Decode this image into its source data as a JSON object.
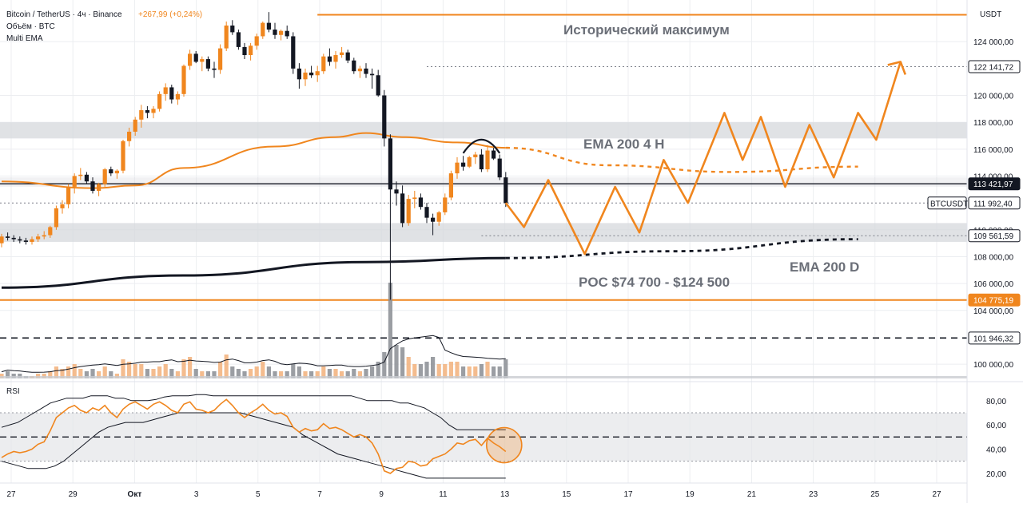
{
  "header": {
    "pair": "Bitcoin / TetherUS · 4ч · Binance",
    "change": "+267,99 (+0,24%)",
    "volume_label": "Объём · BTC",
    "ema_label": "Multi EMA",
    "rsi_label": "RSI"
  },
  "price_axis": {
    "currency": "USDT",
    "ticks": [
      "124 000,00",
      "120 000,00",
      "118 000,00",
      "116 000,00",
      "114 000,00",
      "110 000,00",
      "108 000,00",
      "106 000,00",
      "104 000,00",
      "100 000,00"
    ],
    "tick_values": [
      124000,
      120000,
      118000,
      116000,
      114000,
      110000,
      108000,
      106000,
      104000,
      100000
    ]
  },
  "rsi_axis": {
    "ticks": [
      "80,00",
      "60,00",
      "40,00",
      "20,00"
    ],
    "tick_values": [
      80,
      60,
      40,
      20
    ]
  },
  "price_labels": [
    {
      "text": "122 141,72",
      "value": 122141.72,
      "style": "white"
    },
    {
      "text": "113 421,97",
      "value": 113421.97,
      "style": "dark"
    },
    {
      "text": "111 992,40",
      "value": 111992.4,
      "style": "white"
    },
    {
      "text": "109 561,59",
      "value": 109561.59,
      "style": "white"
    },
    {
      "text": "104 775,19",
      "value": 104775.19,
      "style": "orange"
    },
    {
      "text": "101 946,32",
      "value": 101946.32,
      "style": "white"
    }
  ],
  "symbol_tag": "BTCUSDT",
  "annotations": {
    "ath": "Исторический максимум",
    "ema4h": "EMA 200 4 H",
    "emad": "EMA 200 D",
    "poc": "POC $74 700 - $124 500"
  },
  "time_axis": {
    "labels": [
      "27",
      "29",
      "Окт",
      "3",
      "5",
      "7",
      "9",
      "11",
      "13",
      "15",
      "17",
      "19",
      "21",
      "23",
      "25",
      "27"
    ]
  },
  "colors": {
    "orange": "#f0861e",
    "dark": "#131722",
    "zone": "#d6d8dc",
    "grid": "#eceef1"
  },
  "chart_data": {
    "type": "candlestick",
    "title": "Bitcoin / TetherUS · 4ч · Binance",
    "ylim": [
      98700,
      127100
    ],
    "candles": [
      [
        0,
        109000,
        109700,
        108700,
        109500
      ],
      [
        1,
        109500,
        109800,
        109200,
        109400
      ],
      [
        2,
        109400,
        109600,
        109100,
        109300
      ],
      [
        3,
        109300,
        109500,
        109000,
        109200
      ],
      [
        4,
        109200,
        109400,
        108900,
        109100
      ],
      [
        5,
        109100,
        109500,
        108900,
        109300
      ],
      [
        6,
        109300,
        109700,
        109100,
        109500
      ],
      [
        7,
        109500,
        109900,
        109300,
        109600
      ],
      [
        8,
        109600,
        110300,
        109400,
        110200
      ],
      [
        9,
        110200,
        111800,
        110000,
        111600
      ],
      [
        10,
        111600,
        112200,
        111200,
        111900
      ],
      [
        11,
        111900,
        113400,
        111600,
        113200
      ],
      [
        12,
        113200,
        114200,
        112700,
        114000
      ],
      [
        13,
        114000,
        114600,
        113700,
        114100
      ],
      [
        14,
        114100,
        114300,
        113400,
        113600
      ],
      [
        15,
        113600,
        113900,
        112700,
        112900
      ],
      [
        16,
        112900,
        113500,
        112500,
        113400
      ],
      [
        17,
        113400,
        114600,
        113200,
        114500
      ],
      [
        18,
        114500,
        114700,
        114000,
        114200
      ],
      [
        19,
        114200,
        114500,
        113800,
        114400
      ],
      [
        20,
        114400,
        116700,
        114200,
        116600
      ],
      [
        21,
        116600,
        117600,
        116200,
        117300
      ],
      [
        22,
        117300,
        118400,
        117000,
        118200
      ],
      [
        23,
        118200,
        119300,
        117600,
        118900
      ],
      [
        24,
        118900,
        119200,
        118300,
        118700
      ],
      [
        25,
        118700,
        119200,
        118300,
        119000
      ],
      [
        26,
        119000,
        120300,
        118800,
        120100
      ],
      [
        27,
        120100,
        120900,
        119600,
        120600
      ],
      [
        28,
        120600,
        120800,
        119400,
        119700
      ],
      [
        29,
        119700,
        120300,
        119300,
        120100
      ],
      [
        30,
        120100,
        122300,
        119900,
        122200
      ],
      [
        31,
        122200,
        123400,
        121900,
        123100
      ],
      [
        32,
        123100,
        123300,
        122400,
        122500
      ],
      [
        33,
        122500,
        122900,
        121800,
        122700
      ],
      [
        34,
        122700,
        122900,
        121800,
        122000
      ],
      [
        35,
        122000,
        122500,
        121300,
        121900
      ],
      [
        36,
        121900,
        123800,
        121600,
        123500
      ],
      [
        37,
        123500,
        125500,
        123300,
        125200
      ],
      [
        38,
        125200,
        125600,
        124500,
        124700
      ],
      [
        39,
        124700,
        124900,
        123400,
        123600
      ],
      [
        40,
        123600,
        123900,
        122700,
        123000
      ],
      [
        41,
        123000,
        123900,
        122600,
        123700
      ],
      [
        42,
        123700,
        124600,
        123400,
        124400
      ],
      [
        43,
        124400,
        125500,
        124200,
        125400
      ],
      [
        44,
        125400,
        126200,
        124700,
        124900
      ],
      [
        45,
        124900,
        125400,
        124200,
        124500
      ],
      [
        46,
        124500,
        124900,
        124100,
        124800
      ],
      [
        47,
        124800,
        125200,
        124200,
        124400
      ],
      [
        48,
        124400,
        124700,
        121600,
        122000
      ],
      [
        49,
        122000,
        122400,
        120500,
        121200
      ],
      [
        50,
        121200,
        122000,
        120700,
        121700
      ],
      [
        51,
        121700,
        122200,
        121300,
        121500
      ],
      [
        52,
        121500,
        122200,
        121000,
        121800
      ],
      [
        53,
        121800,
        123100,
        121600,
        122900
      ],
      [
        54,
        122900,
        123500,
        122200,
        122500
      ],
      [
        55,
        122500,
        123300,
        122000,
        123000
      ],
      [
        56,
        123000,
        123600,
        122800,
        123200
      ],
      [
        57,
        123200,
        123400,
        122400,
        122600
      ],
      [
        58,
        122600,
        122800,
        121600,
        121800
      ],
      [
        59,
        121800,
        122200,
        121300,
        122000
      ],
      [
        60,
        122000,
        122400,
        121300,
        121600
      ],
      [
        61,
        121600,
        122000,
        120500,
        121500
      ],
      [
        62,
        121500,
        121900,
        119900,
        120000
      ],
      [
        63,
        120000,
        120400,
        116200,
        116800
      ],
      [
        64,
        116800,
        117100,
        104800,
        113000
      ],
      [
        65,
        113000,
        113600,
        111800,
        112700
      ],
      [
        66,
        112700,
        113300,
        110200,
        110500
      ],
      [
        67,
        110500,
        112600,
        110300,
        112300
      ],
      [
        68,
        112300,
        112900,
        111600,
        112400
      ],
      [
        69,
        112400,
        112700,
        111500,
        111700
      ],
      [
        70,
        111700,
        112000,
        110500,
        110900
      ],
      [
        71,
        110900,
        111200,
        109600,
        110600
      ],
      [
        72,
        110600,
        111400,
        110300,
        111300
      ],
      [
        73,
        111300,
        112700,
        111100,
        112400
      ],
      [
        74,
        112400,
        114400,
        112200,
        114200
      ],
      [
        75,
        114200,
        115400,
        113800,
        115000
      ],
      [
        76,
        115000,
        115500,
        114400,
        114700
      ],
      [
        77,
        114700,
        115500,
        114600,
        115400
      ],
      [
        78,
        115400,
        115800,
        114900,
        115600
      ],
      [
        79,
        115600,
        116000,
        114300,
        114500
      ],
      [
        80,
        114500,
        116300,
        114300,
        115900
      ],
      [
        81,
        115900,
        116100,
        115200,
        115300
      ],
      [
        82,
        115300,
        115600,
        113700,
        113900
      ],
      [
        83,
        113900,
        114300,
        111700,
        112000
      ]
    ],
    "volume": [
      2,
      3,
      2,
      2,
      1,
      1,
      2,
      2,
      3,
      5,
      4,
      5,
      6,
      4,
      3,
      4,
      3,
      5,
      3,
      2,
      8,
      7,
      6,
      6,
      4,
      4,
      5,
      6,
      4,
      3,
      8,
      9,
      4,
      3,
      3,
      3,
      7,
      10,
      5,
      4,
      3,
      4,
      5,
      7,
      5,
      3,
      3,
      3,
      6,
      5,
      3,
      3,
      3,
      5,
      4,
      4,
      3,
      3,
      4,
      3,
      4,
      5,
      7,
      11,
      40,
      14,
      13,
      9,
      6,
      6,
      7,
      9,
      6,
      6,
      7,
      7,
      5,
      5,
      5,
      6,
      7,
      5,
      5,
      8
    ],
    "ema_4h": [
      [
        0,
        113600
      ],
      [
        15,
        113100
      ],
      [
        22,
        113300
      ],
      [
        30,
        114600
      ],
      [
        45,
        116200
      ],
      [
        55,
        116900
      ],
      [
        60,
        117200
      ],
      [
        66,
        116900
      ],
      [
        75,
        116500
      ],
      [
        83,
        116100
      ]
    ],
    "ema_4h_projection": [
      [
        83,
        116100
      ],
      [
        100,
        114800
      ],
      [
        120,
        114300
      ],
      [
        141,
        114700
      ]
    ],
    "ema_d": [
      [
        0,
        105700
      ],
      [
        30,
        106600
      ],
      [
        60,
        107600
      ],
      [
        83,
        107900
      ]
    ],
    "ema_d_projection": [
      [
        83,
        107900
      ],
      [
        110,
        108400
      ],
      [
        141,
        109300
      ]
    ],
    "projection_path": [
      [
        83,
        112000
      ],
      [
        86,
        110200
      ],
      [
        90,
        113700
      ],
      [
        96,
        108200
      ],
      [
        101,
        113200
      ],
      [
        105,
        109800
      ],
      [
        109,
        115200
      ],
      [
        113,
        112000
      ],
      [
        119,
        118700
      ],
      [
        122,
        115200
      ],
      [
        125,
        118400
      ],
      [
        129,
        113200
      ],
      [
        133,
        117800
      ],
      [
        137,
        113900
      ],
      [
        141,
        118700
      ],
      [
        144,
        116700
      ],
      [
        148,
        122500
      ]
    ],
    "projection_arrow_tip": [
      148,
      122500
    ],
    "horizontal_lines": [
      {
        "value": 126000,
        "style": "orange-solid",
        "from_index": 52
      },
      {
        "value": 122141.72,
        "style": "gray-dotted",
        "from_index": 70
      },
      {
        "value": 113421.97,
        "style": "dark-solid"
      },
      {
        "value": 111992.4,
        "style": "gray-dotted"
      },
      {
        "value": 109561.59,
        "style": "gray-dotted",
        "from_index": 79
      },
      {
        "value": 104775.19,
        "style": "orange-solid"
      },
      {
        "value": 101946.32,
        "style": "dark-dashed"
      }
    ],
    "zones": [
      [
        116800,
        118000
      ],
      [
        109100,
        110500
      ],
      [
        113200,
        113900
      ]
    ],
    "rsi": {
      "ylim": [
        12,
        95
      ],
      "levels": [
        70,
        50,
        30
      ],
      "values": [
        33,
        36,
        38,
        37,
        38,
        40,
        44,
        46,
        55,
        66,
        70,
        74,
        76,
        72,
        70,
        74,
        72,
        76,
        70,
        66,
        73,
        77,
        79,
        76,
        73,
        77,
        79,
        76,
        72,
        70,
        77,
        79,
        73,
        72,
        70,
        72,
        77,
        81,
        76,
        70,
        66,
        70,
        73,
        77,
        72,
        69,
        70,
        67,
        58,
        54,
        57,
        55,
        56,
        61,
        57,
        58,
        56,
        53,
        50,
        52,
        50,
        45,
        36,
        22,
        20,
        24,
        25,
        30,
        29,
        26,
        27,
        32,
        34,
        36,
        40,
        45,
        44,
        47,
        48,
        43,
        49,
        45,
        42,
        38
      ],
      "upper_band": [
        58,
        60,
        62,
        66,
        70,
        74,
        78,
        80,
        82,
        82,
        82,
        84,
        84,
        84,
        82,
        82,
        80,
        80,
        80,
        81,
        83,
        84,
        84,
        84,
        85,
        85,
        84,
        84,
        84,
        84,
        84,
        84,
        84,
        84,
        84,
        84,
        84,
        84,
        84,
        84,
        84,
        84,
        84,
        84,
        82,
        80,
        80,
        80,
        80,
        78,
        78,
        76,
        74,
        70,
        66,
        60,
        56,
        56,
        56,
        56,
        56,
        56,
        56
      ],
      "lower_band": [
        30,
        28,
        26,
        24,
        24,
        24,
        26,
        30,
        36,
        42,
        48,
        54,
        58,
        60,
        62,
        62,
        62,
        64,
        66,
        68,
        70,
        70,
        70,
        70,
        70,
        70,
        70,
        70,
        68,
        66,
        64,
        62,
        60,
        58,
        52,
        48,
        44,
        40,
        36,
        34,
        32,
        30,
        28,
        26,
        24,
        22,
        20,
        18,
        16,
        16,
        16,
        16,
        16,
        16,
        16,
        16,
        16,
        16
      ]
    }
  }
}
